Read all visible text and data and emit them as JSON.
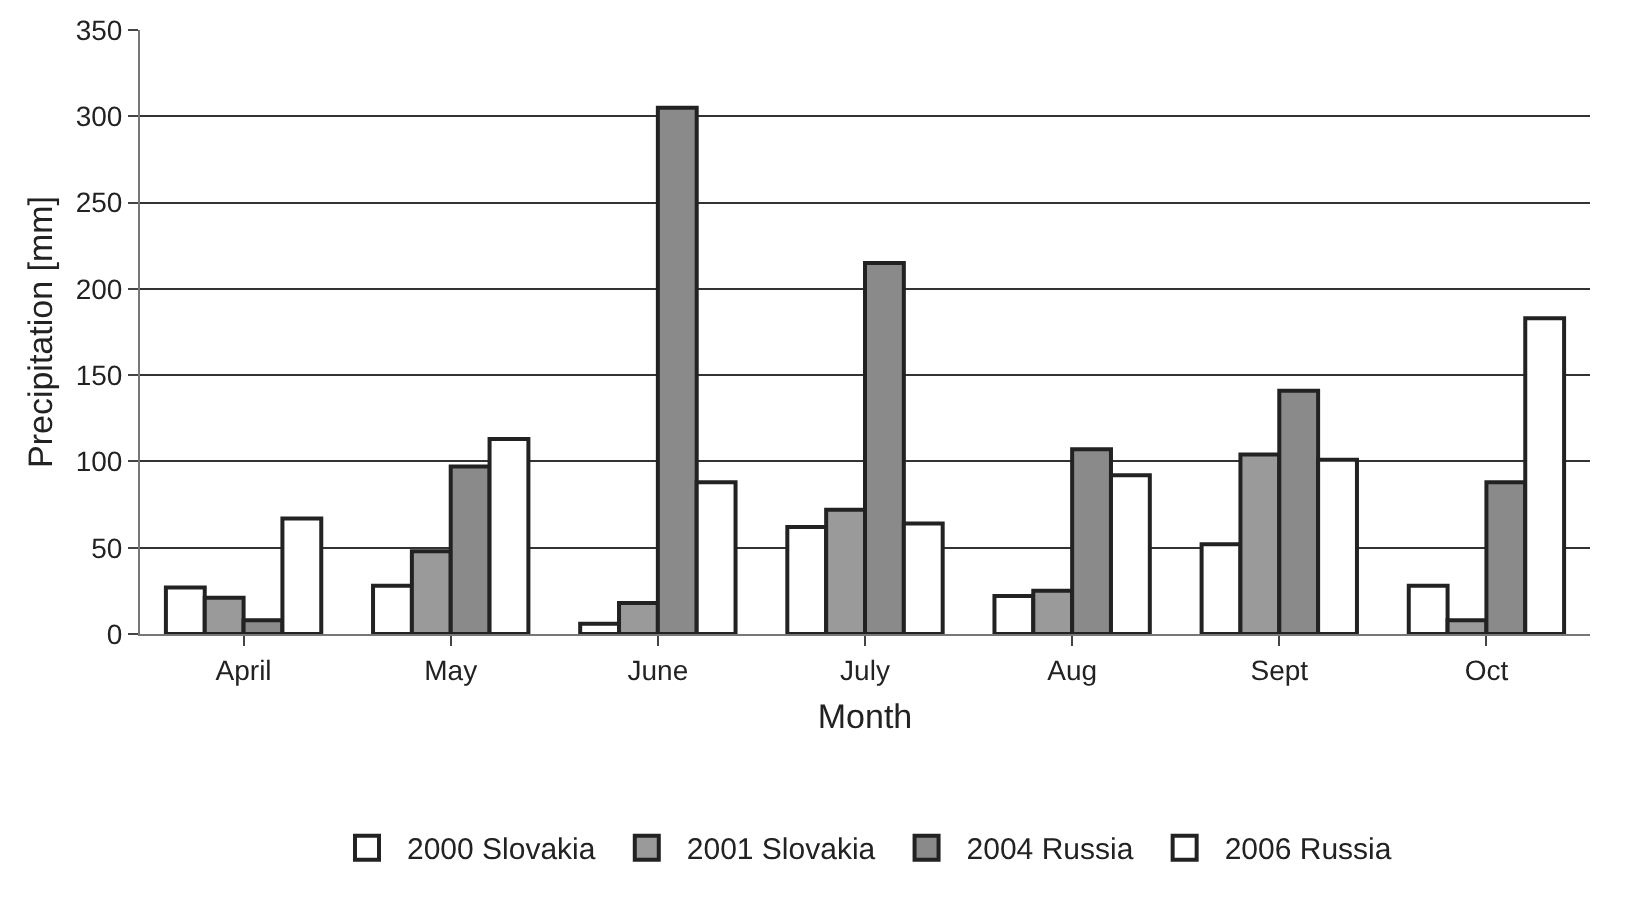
{
  "chart_data": {
    "type": "bar",
    "xlabel": "Month",
    "ylabel": "Precipitation [mm]",
    "categories": [
      "April",
      "May",
      "June",
      "July",
      "Aug",
      "Sept",
      "Oct"
    ],
    "series": [
      {
        "name": "2000 Slovakia",
        "color": "#ffffff",
        "values": [
          27,
          28,
          6,
          62,
          22,
          52,
          28
        ]
      },
      {
        "name": "2001 Slovakia",
        "color": "#9a9a9a",
        "values": [
          21,
          48,
          18,
          72,
          25,
          104,
          8
        ]
      },
      {
        "name": "2004 Russia",
        "color": "#8a8a8a",
        "values": [
          8,
          97,
          305,
          215,
          107,
          141,
          88
        ]
      },
      {
        "name": "2006 Russia",
        "color": "#ffffff",
        "values": [
          67,
          113,
          88,
          64,
          92,
          101,
          183
        ]
      }
    ],
    "ylim": [
      0,
      350
    ],
    "yticks": [
      0,
      50,
      100,
      150,
      200,
      250,
      300,
      350
    ],
    "grid": "y",
    "legend": "bottom"
  }
}
